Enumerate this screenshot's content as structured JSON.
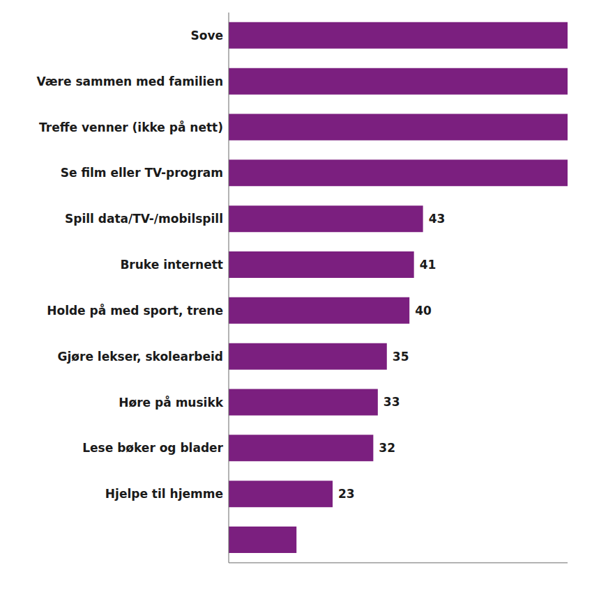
{
  "chart_data": {
    "type": "bar",
    "orientation": "horizontal",
    "categories": [
      "Sove",
      "Være sammen med familien",
      "Treffe venner (ikke på nett)",
      "Se film eller TV-program",
      "Spill data/TV-/mobilspill",
      "Bruke internett",
      "Holde på med sport, trene",
      "Gjøre lekser, skolearbeid",
      "Høre på musikk",
      "Lese bøker og blader",
      "Hjelpe til hjemme",
      null
    ],
    "values": [
      75,
      75,
      75,
      75,
      43,
      41,
      40,
      35,
      33,
      32,
      23,
      15
    ],
    "value_labels": [
      null,
      null,
      null,
      null,
      "43",
      "41",
      "40",
      "35",
      "33",
      "32",
      "23",
      null
    ],
    "color": "#7b1f7f",
    "xlim": [
      0,
      75
    ],
    "tick_labels": "y",
    "grid": false
  }
}
